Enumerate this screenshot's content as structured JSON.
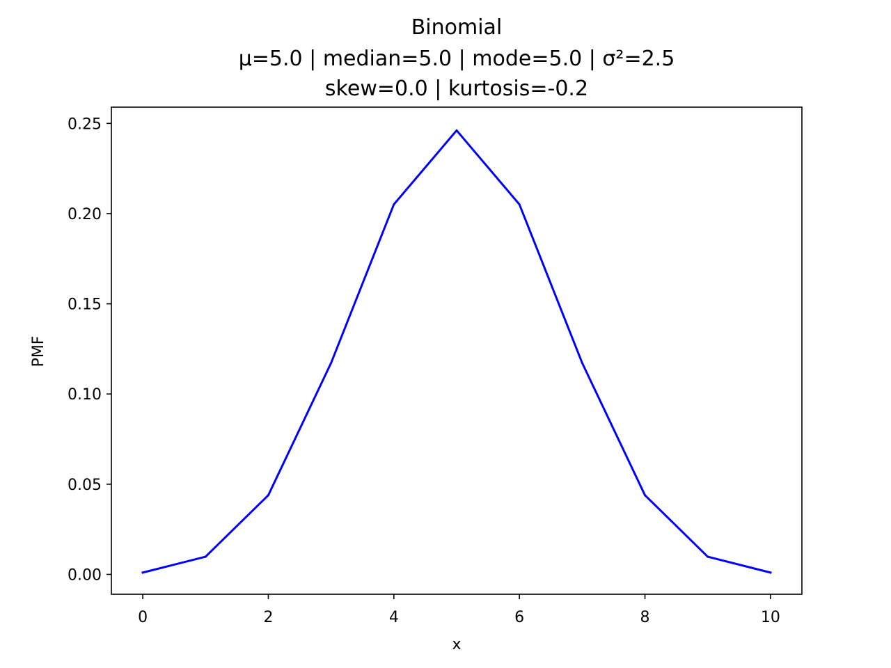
{
  "chart_data": {
    "type": "line",
    "title": "Binomial",
    "subtitle_lines": [
      "μ=5.0 | median=5.0 | mode=5.0 | σ²=2.5",
      "skew=0.0 | kurtosis=-0.2"
    ],
    "xlabel": "x",
    "ylabel": "PMF",
    "xlim": [
      -0.5,
      10.5
    ],
    "ylim": [
      -0.011,
      0.259
    ],
    "xticks": [
      0,
      2,
      4,
      6,
      8,
      10
    ],
    "xtick_labels": [
      "0",
      "2",
      "4",
      "6",
      "8",
      "10"
    ],
    "yticks": [
      0.0,
      0.05,
      0.1,
      0.15,
      0.2,
      0.25
    ],
    "ytick_labels": [
      "0.00",
      "0.05",
      "0.10",
      "0.15",
      "0.20",
      "0.25"
    ],
    "grid": false,
    "series": [
      {
        "color": "#0000ff",
        "x": [
          0,
          1,
          2,
          3,
          4,
          5,
          6,
          7,
          8,
          9,
          10
        ],
        "y": [
          0.001,
          0.0098,
          0.0439,
          0.1172,
          0.2051,
          0.2461,
          0.2051,
          0.1172,
          0.0439,
          0.0098,
          0.001
        ]
      }
    ]
  }
}
